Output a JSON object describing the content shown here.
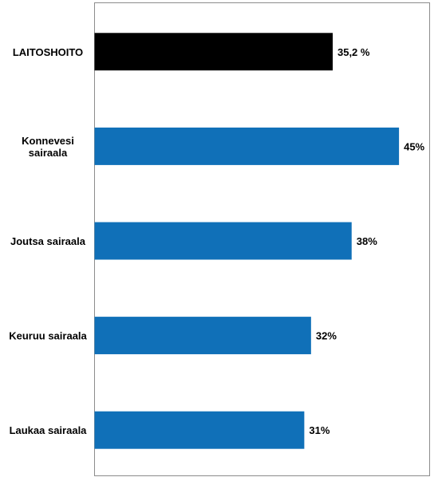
{
  "chart_data": {
    "type": "bar",
    "orientation": "horizontal",
    "categories": [
      [
        "LAITOSHOITO"
      ],
      [
        "Konnevesi",
        "sairaala"
      ],
      [
        "Joutsa sairaala"
      ],
      [
        "Keuruu sairaala"
      ],
      [
        "Laukaa sairaala"
      ]
    ],
    "values": [
      35.2,
      45,
      38,
      32,
      31
    ],
    "data_labels": [
      "35,2 %",
      "45%",
      "38%",
      "32%",
      "31%"
    ],
    "colors": [
      "#000000",
      "#1070b8",
      "#1070b8",
      "#1070b8",
      "#1070b8"
    ],
    "xlim": [
      0,
      50
    ],
    "grid": false,
    "legend": "none"
  }
}
